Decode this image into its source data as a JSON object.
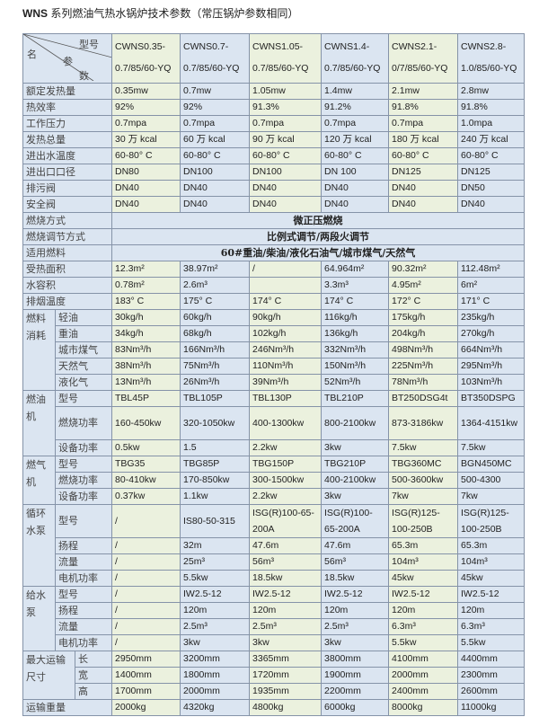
{
  "title": {
    "bold": "WNS",
    "text": " 系列燃油气热水锅炉技术参数（常压锅炉参数相同）"
  },
  "header": {
    "corner": {
      "model": "型号",
      "name": "名",
      "param1": "参",
      "param2": "数"
    },
    "models": [
      "CWNS0.35-0.7/85/60-YQ",
      "CWNS0.7-0.7/85/60-YQ",
      "CWNS1.05-0.7/85/60-YQ",
      "CWNS1.4-0.7/85/60-YQ",
      "CWNS2.1-0/7/85/60-YQ",
      "CWNS2.8-1.0/85/60-YQ"
    ]
  },
  "colors": {
    "border": "#8593a8",
    "blue_column": "#dbe5f1",
    "green_column": "#ebf1de"
  },
  "rows": [
    {
      "label": "额定发热量",
      "values": [
        "0.35mw",
        "0.7mw",
        "1.05mw",
        "1.4mw",
        "2.1mw",
        "2.8mw"
      ]
    },
    {
      "label": "热效率",
      "values": [
        "92%",
        "92%",
        "91.3%",
        "91.2%",
        "91.8%",
        "91.8%"
      ]
    },
    {
      "label": "工作压力",
      "values": [
        "0.7mpa",
        "0.7mpa",
        "0.7mpa",
        "0.7mpa",
        "0.7mpa",
        "1.0mpa"
      ]
    },
    {
      "label": "发热总量",
      "values": [
        "30 万 kcal",
        "60 万 kcal",
        "90 万 kcal",
        "120 万 kcal",
        "180 万 kcal",
        "240 万 kcal"
      ]
    },
    {
      "label": "进出水温度",
      "values": [
        "60-80° C",
        "60-80° C",
        "60-80° C",
        "60-80° C",
        "60-80° C",
        "60-80° C"
      ]
    },
    {
      "label": "进出口口径",
      "values": [
        "DN80",
        "DN100",
        "DN100",
        "DN 100",
        "DN125",
        "DN125"
      ]
    },
    {
      "label": "排污阀",
      "values": [
        "DN40",
        "DN40",
        "DN40",
        "DN40",
        "DN40",
        "DN50"
      ]
    },
    {
      "label": "安全阀",
      "values": [
        "DN40",
        "DN40",
        "DN40",
        "DN40",
        "DN40",
        "DN40"
      ]
    },
    {
      "label": "燃烧方式",
      "span": "微正压燃烧"
    },
    {
      "label": "燃烧调节方式",
      "span": "比例式调节/两段火调节"
    },
    {
      "label": "适用燃料",
      "span": "60#重油/柴油/液化石油气/城市煤气/天然气"
    },
    {
      "label": "受热面积",
      "values": [
        "12.3m²",
        "38.97m²",
        "/",
        "64.964m²",
        "90.32m²",
        "112.48m²"
      ]
    },
    {
      "label": "水容积",
      "values": [
        "0.78m²",
        "2.6m³",
        "",
        "3.3m³",
        "4.95m²",
        "6m²"
      ]
    },
    {
      "label": "排烟温度",
      "values": [
        "183° C",
        "175° C",
        "174° C",
        "174° C",
        "172° C",
        "171° C"
      ]
    }
  ],
  "groups": [
    {
      "label": "燃料消耗",
      "rows": [
        {
          "label": "轻油",
          "values": [
            "30kg/h",
            "60kg/h",
            "90kg/h",
            "116kg/h",
            "175kg/h",
            "235kg/h"
          ]
        },
        {
          "label": "重油",
          "values": [
            "34kg/h",
            "68kg/h",
            "102kg/h",
            "136kg/h",
            "204kg/h",
            "270kg/h"
          ]
        },
        {
          "label": "城市煤气",
          "values": [
            "83Nm³/h",
            "166Nm³/h",
            "246Nm³/h",
            "332Nm³/h",
            "498Nm³/h",
            "664Nm³/h"
          ]
        },
        {
          "label": "天然气",
          "values": [
            "38Nm³/h",
            "75Nm³/h",
            "110Nm³/h",
            "150Nm³/h",
            "225Nm³/h",
            "295Nm³/h"
          ]
        },
        {
          "label": "液化气",
          "values": [
            "13Nm³/h",
            "26Nm³/h",
            "39Nm³/h",
            "52Nm³/h",
            "78Nm³/h",
            "103Nm³/h"
          ]
        }
      ]
    },
    {
      "label": "燃油机",
      "rows": [
        {
          "label": "型号",
          "values": [
            "TBL45P",
            "TBL105P",
            "TBL130P",
            "TBL210P",
            "BT250DSG4t",
            "BT350DSPG"
          ]
        },
        {
          "label": "燃烧功率",
          "double": true,
          "values": [
            "160-450kw",
            "320-1050kw",
            "400-1300kw",
            "800-2100kw",
            "873-3186kw",
            "1364-4151kw"
          ]
        },
        {
          "label": "设备功率",
          "values": [
            "0.5kw",
            "1.5",
            "2.2kw",
            "3kw",
            "7.5kw",
            "7.5kw"
          ]
        }
      ]
    },
    {
      "label": "燃气机",
      "rows": [
        {
          "label": "型号",
          "values": [
            "TBG35",
            "TBG85P",
            "TBG150P",
            "TBG210P",
            "TBG360MC",
            "BGN450MC"
          ]
        },
        {
          "label": "燃烧功率",
          "values": [
            "80-410kw",
            "170-850kw",
            "300-1500kw",
            "400-2100kw",
            "500-3600kw",
            "500-4300"
          ]
        },
        {
          "label": "设备功率",
          "values": [
            "0.37kw",
            "1.1kw",
            "2.2kw",
            "3kw",
            "7kw",
            "7kw"
          ]
        }
      ]
    },
    {
      "label": "循环水泵",
      "rows": [
        {
          "label": "型号",
          "double": true,
          "values": [
            "/",
            "IS80-50-315",
            "ISG(R)100-65-200A",
            "ISG(R)100-65-200A",
            "ISG(R)125-100-250B",
            "ISG(R)125-100-250B"
          ]
        },
        {
          "label": "扬程",
          "values": [
            "/",
            "32m",
            "47.6m",
            "47.6m",
            "65.3m",
            "65.3m"
          ]
        },
        {
          "label": "流量",
          "values": [
            "/",
            "25m³",
            "56m³",
            "56m³",
            "104m³",
            "104m³"
          ]
        },
        {
          "label": "电机功率",
          "values": [
            "/",
            "5.5kw",
            "18.5kw",
            "18.5kw",
            "45kw",
            "45kw"
          ]
        }
      ]
    },
    {
      "label": "给水泵",
      "rows": [
        {
          "label": "型号",
          "values": [
            "/",
            "IW2.5-12",
            "IW2.5-12",
            "IW2.5-12",
            "IW2.5-12",
            "IW2.5-12"
          ]
        },
        {
          "label": "扬程",
          "values": [
            "/",
            "120m",
            "120m",
            "120m",
            "120m",
            "120m"
          ]
        },
        {
          "label": "流量",
          "values": [
            "/",
            "2.5m³",
            "2.5m³",
            "2.5m³",
            "6.3m³",
            "6.3m³"
          ]
        },
        {
          "label": "电机功率",
          "values": [
            "/",
            "3kw",
            "3kw",
            "3kw",
            "5.5kw",
            "5.5kw"
          ]
        }
      ]
    },
    {
      "label": "最大运输尺寸",
      "wide": true,
      "rows": [
        {
          "label": "长",
          "values": [
            "2950mm",
            "3200mm",
            "3365mm",
            "3800mm",
            "4100mm",
            "4400mm"
          ]
        },
        {
          "label": "宽",
          "values": [
            "1400mm",
            "1800mm",
            "1720mm",
            "1900mm",
            "2000mm",
            "2300mm"
          ]
        },
        {
          "label": "高",
          "values": [
            "1700mm",
            "2000mm",
            "1935mm",
            "2200mm",
            "2400mm",
            "2600mm"
          ]
        }
      ]
    }
  ],
  "footer_row": {
    "label": "运输重量",
    "values": [
      "2000kg",
      "4320kg",
      "4800kg",
      "6000kg",
      "8000kg",
      "11000kg"
    ]
  }
}
